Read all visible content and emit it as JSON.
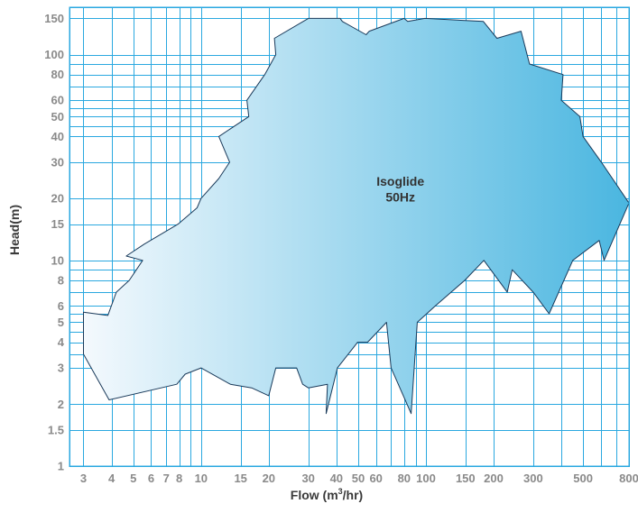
{
  "chart_data": {
    "type": "area",
    "xlabel": "Flow (m³/hr)",
    "ylabel": "Head(m)",
    "x_scale": "log",
    "y_scale": "log",
    "xlim": [
      2.6,
      800
    ],
    "ylim": [
      1,
      170
    ],
    "grid": true,
    "x_tick_values": [
      3,
      4,
      5,
      6,
      7,
      8,
      10,
      15,
      20,
      30,
      40,
      50,
      60,
      80,
      100,
      150,
      200,
      300,
      500,
      800
    ],
    "x_tick_labels": [
      "3",
      "4",
      "5",
      "6",
      "7",
      "8",
      "10",
      "15",
      "20",
      "30",
      "40",
      "50",
      "60",
      "80",
      "100",
      "150",
      "200",
      "300",
      "500",
      "800"
    ],
    "x_tick_groups": [
      "3",
      "4",
      "5",
      "6 7 8",
      "10",
      "15",
      "20",
      "30",
      "40",
      "5060",
      "80",
      "100",
      "150",
      "200",
      "300",
      "500",
      "800"
    ],
    "y_tick_values": [
      1,
      1.5,
      2,
      3,
      4,
      5,
      6,
      8,
      10,
      15,
      20,
      30,
      40,
      50,
      60,
      80,
      100,
      150
    ],
    "y_tick_labels": [
      "1",
      "1.5",
      "2",
      "3",
      "4",
      "5",
      "6",
      "8",
      "10",
      "15",
      "20",
      "30",
      "40",
      "50",
      "60",
      "80",
      "100",
      "150"
    ],
    "x_grid_values": [
      3,
      4,
      5,
      6,
      7,
      8,
      9,
      10,
      15,
      20,
      30,
      40,
      50,
      60,
      70,
      80,
      90,
      100,
      150,
      200,
      300,
      400,
      500,
      600,
      700
    ],
    "y_grid_values": [
      1.5,
      2,
      3,
      3.5,
      4,
      4.5,
      5,
      5.5,
      6,
      7,
      8,
      9,
      10,
      15,
      20,
      30,
      40,
      45,
      50,
      55,
      60,
      70,
      80,
      90,
      100,
      150
    ],
    "series": [
      {
        "name": "Isoglide 50Hz",
        "type": "envelope",
        "gradient": [
          "#f4f9fd",
          "#4ab6e0"
        ],
        "x": [
          3.0,
          3.85,
          4.2,
          4.8,
          5.5,
          4.65,
          5.6,
          7.9,
          9.6,
          10.0,
          12.0,
          13.4,
          12.0,
          16.3,
          16.0,
          19.2,
          21.5,
          21.2,
          30.0,
          41.6,
          42.5,
          54.2,
          56.0,
          80.0,
          83.0,
          99.0,
          180.0,
          207.0,
          265.0,
          289.0,
          407.0,
          400.0,
          484.0,
          500.0,
          603.0,
          800.0,
          620.0,
          590.0,
          450.0,
          353.0,
          300.0,
          242.0,
          230.0,
          181.0,
          149.0,
          110.0,
          91.5,
          86.0,
          70.0,
          66.8,
          55.0,
          49.7,
          40.4,
          36.0,
          36.5,
          30.0,
          28.3,
          26.6,
          21.5,
          20.0,
          16.8,
          13.5,
          10.0,
          8.5,
          7.8,
          3.9,
          3.0
        ],
        "y": [
          5.6,
          5.4,
          7.0,
          8.0,
          10.0,
          10.5,
          12.0,
          15.0,
          18.0,
          20.0,
          25.0,
          30.0,
          40.0,
          50.0,
          60.0,
          80.0,
          100.0,
          120.0,
          150.0,
          150.0,
          145.0,
          125.0,
          130.0,
          150.0,
          145.0,
          150.0,
          145.0,
          120.0,
          130.0,
          90.0,
          80.0,
          60.0,
          50.0,
          40.0,
          30.0,
          19.0,
          10.0,
          12.5,
          10.0,
          5.5,
          7.0,
          9.0,
          7.0,
          10.0,
          8.0,
          6.0,
          5.0,
          1.8,
          3.0,
          5.0,
          4.0,
          4.0,
          3.0,
          1.8,
          2.5,
          2.4,
          2.5,
          3.0,
          3.0,
          2.2,
          2.4,
          2.5,
          3.0,
          2.8,
          2.5,
          2.1,
          3.5
        ]
      }
    ],
    "annotations": [
      {
        "text": "Isoglide",
        "x": 77,
        "y": 23
      },
      {
        "text": "50Hz",
        "x": 77,
        "y": 19.3
      }
    ]
  }
}
